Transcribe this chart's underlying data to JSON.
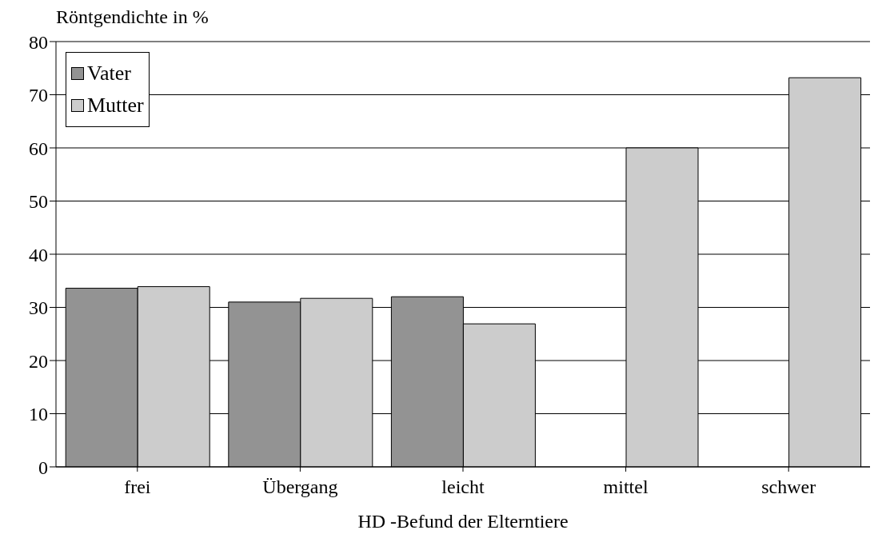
{
  "chart_data": {
    "type": "bar",
    "ylabel": "Röntgendichte in %",
    "xlabel": "HD -Befund der Elterntiere",
    "categories": [
      "frei",
      "Übergang",
      "leicht",
      "mittel",
      "schwer"
    ],
    "series": [
      {
        "name": "Vater",
        "color": "#939393",
        "values": [
          33.6,
          31.0,
          32.0,
          null,
          null
        ]
      },
      {
        "name": "Mutter",
        "color": "#cccccc",
        "values": [
          33.9,
          31.7,
          26.9,
          60.0,
          73.2
        ]
      }
    ],
    "ylim": [
      0,
      80
    ],
    "yticks": [
      0,
      10,
      20,
      30,
      40,
      50,
      60,
      70,
      80
    ],
    "grid": "y",
    "legend": "top left"
  }
}
